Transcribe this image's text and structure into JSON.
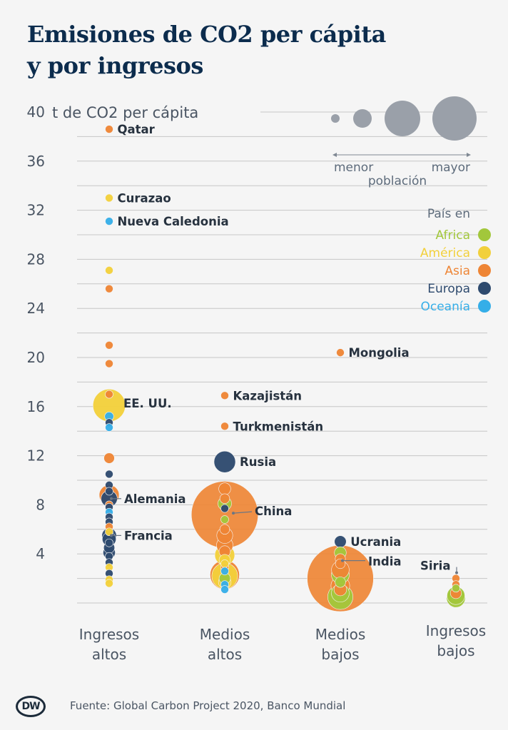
{
  "title": {
    "line1": "Emisiones de CO2 per cápita",
    "line2": "y por ingresos"
  },
  "source": "Fuente: Global Carbon Project 2020, Banco Mundial",
  "logo": "DW",
  "chart_data": {
    "type": "scatter",
    "ylabel": "t de CO2 per cápita",
    "ylim": [
      0,
      40
    ],
    "yticks": [
      4,
      8,
      12,
      16,
      20,
      24,
      28,
      32,
      36,
      40
    ],
    "grid": true,
    "categories": [
      "Ingresos altos",
      "Medios altos",
      "Medios bajos",
      "Ingresos bajos"
    ],
    "category_labels": [
      [
        "Ingresos",
        "altos"
      ],
      [
        "Medios",
        "altos"
      ],
      [
        "Medios",
        "bajos"
      ],
      [
        "Ingresos",
        "bajos"
      ]
    ],
    "size_legend": {
      "low": "menor",
      "high": "mayor",
      "label": "población"
    },
    "color_legend_title": "País en",
    "regions": [
      {
        "name": "Africa",
        "color": "#a2c73b"
      },
      {
        "name": "América",
        "color": "#f2d03b"
      },
      {
        "name": "Asia",
        "color": "#ee8535"
      },
      {
        "name": "Europa",
        "color": "#2e4a6e"
      },
      {
        "name": "Oceanía",
        "color": "#35aee8"
      }
    ],
    "points": [
      {
        "cat": 0,
        "y": 38.6,
        "region": "Asia",
        "pop": 3,
        "label": "Qatar"
      },
      {
        "cat": 0,
        "y": 33.0,
        "region": "América",
        "pop": 1,
        "label": "Curazao"
      },
      {
        "cat": 0,
        "y": 31.1,
        "region": "Oceanía",
        "pop": 1,
        "label": "Nueva Caledonia"
      },
      {
        "cat": 0,
        "y": 27.1,
        "region": "América",
        "pop": 1
      },
      {
        "cat": 0,
        "y": 25.6,
        "region": "Asia",
        "pop": 1
      },
      {
        "cat": 0,
        "y": 21.0,
        "region": "Asia",
        "pop": 1
      },
      {
        "cat": 0,
        "y": 19.5,
        "region": "Asia",
        "pop": 2
      },
      {
        "cat": 0,
        "y": 17.0,
        "region": "Asia",
        "pop": 4
      },
      {
        "cat": 0,
        "y": 16.1,
        "region": "América",
        "pop": 330,
        "label": "EE. UU."
      },
      {
        "cat": 0,
        "y": 15.2,
        "region": "Oceanía",
        "pop": 25
      },
      {
        "cat": 0,
        "y": 14.7,
        "region": "Europa",
        "pop": 3
      },
      {
        "cat": 0,
        "y": 14.3,
        "region": "Oceanía",
        "pop": 5
      },
      {
        "cat": 0,
        "y": 11.8,
        "region": "Asia",
        "pop": 35
      },
      {
        "cat": 0,
        "y": 10.5,
        "region": "Europa",
        "pop": 2
      },
      {
        "cat": 0,
        "y": 9.6,
        "region": "Europa",
        "pop": 10
      },
      {
        "cat": 0,
        "y": 9.1,
        "region": "Europa",
        "pop": 5
      },
      {
        "cat": 0,
        "y": 8.8,
        "region": "Asia",
        "pop": 125
      },
      {
        "cat": 0,
        "y": 8.5,
        "region": "Europa",
        "pop": 83,
        "label": "Alemania"
      },
      {
        "cat": 0,
        "y": 8.0,
        "region": "Asia",
        "pop": 10
      },
      {
        "cat": 0,
        "y": 7.8,
        "region": "Europa",
        "pop": 11
      },
      {
        "cat": 0,
        "y": 7.4,
        "region": "Oceanía",
        "pop": 2
      },
      {
        "cat": 0,
        "y": 7.0,
        "region": "Europa",
        "pop": 17
      },
      {
        "cat": 0,
        "y": 6.6,
        "region": "Europa",
        "pop": 10
      },
      {
        "cat": 0,
        "y": 6.2,
        "region": "Asia",
        "pop": 5
      },
      {
        "cat": 0,
        "y": 5.8,
        "region": "América",
        "pop": 18
      },
      {
        "cat": 0,
        "y": 5.5,
        "region": "Europa",
        "pop": 67,
        "label": "Francia"
      },
      {
        "cat": 0,
        "y": 5.2,
        "region": "Europa",
        "pop": 60
      },
      {
        "cat": 0,
        "y": 4.9,
        "region": "Europa",
        "pop": 20
      },
      {
        "cat": 0,
        "y": 4.5,
        "region": "Europa",
        "pop": 38
      },
      {
        "cat": 0,
        "y": 4.1,
        "region": "Europa",
        "pop": 47
      },
      {
        "cat": 0,
        "y": 3.8,
        "region": "Europa",
        "pop": 10
      },
      {
        "cat": 0,
        "y": 3.3,
        "region": "Europa",
        "pop": 2
      },
      {
        "cat": 0,
        "y": 2.9,
        "region": "América",
        "pop": 2
      },
      {
        "cat": 0,
        "y": 2.4,
        "region": "Europa",
        "pop": 1
      },
      {
        "cat": 0,
        "y": 1.9,
        "region": "América",
        "pop": 1
      },
      {
        "cat": 0,
        "y": 1.6,
        "region": "América",
        "pop": 1
      },
      {
        "cat": 1,
        "y": 16.9,
        "region": "Asia",
        "pop": 19,
        "label": "Kazajistán"
      },
      {
        "cat": 1,
        "y": 14.4,
        "region": "Asia",
        "pop": 6,
        "label": "Turkmenistán"
      },
      {
        "cat": 1,
        "y": 11.5,
        "region": "Europa",
        "pop": 145,
        "label": "Rusia"
      },
      {
        "cat": 1,
        "y": 9.3,
        "region": "Asia",
        "pop": 45
      },
      {
        "cat": 1,
        "y": 8.5,
        "region": "Asia",
        "pop": 30
      },
      {
        "cat": 1,
        "y": 8.1,
        "region": "Africa",
        "pop": 58
      },
      {
        "cat": 1,
        "y": 7.7,
        "region": "Europa",
        "pop": 7
      },
      {
        "cat": 1,
        "y": 7.2,
        "region": "Asia",
        "pop": 1400,
        "label": "China"
      },
      {
        "cat": 1,
        "y": 6.8,
        "region": "Africa",
        "pop": 4
      },
      {
        "cat": 1,
        "y": 6.0,
        "region": "Asia",
        "pop": 30
      },
      {
        "cat": 1,
        "y": 5.5,
        "region": "Asia",
        "pop": 80
      },
      {
        "cat": 1,
        "y": 4.7,
        "region": "Asia",
        "pop": 85
      },
      {
        "cat": 1,
        "y": 4.2,
        "region": "Asia",
        "pop": 40
      },
      {
        "cat": 1,
        "y": 3.9,
        "region": "América",
        "pop": 125
      },
      {
        "cat": 1,
        "y": 3.5,
        "region": "América",
        "pop": 40
      },
      {
        "cat": 1,
        "y": 3.2,
        "region": "America",
        "pop": 10
      },
      {
        "cat": 1,
        "y": 2.9,
        "region": "Asia",
        "pop": 20
      },
      {
        "cat": 1,
        "y": 2.6,
        "region": "Oceanía",
        "pop": 1
      },
      {
        "cat": 1,
        "y": 2.3,
        "region": "Asia",
        "pop": 270
      },
      {
        "cat": 1,
        "y": 2.2,
        "region": "América",
        "pop": 210
      },
      {
        "cat": 1,
        "y": 2.0,
        "region": "Africa",
        "pop": 40
      },
      {
        "cat": 1,
        "y": 1.7,
        "region": "América",
        "pop": 50
      },
      {
        "cat": 1,
        "y": 1.5,
        "region": "Oceanía",
        "pop": 2
      },
      {
        "cat": 1,
        "y": 1.1,
        "region": "Oceanía",
        "pop": 1
      },
      {
        "cat": 2,
        "y": 20.4,
        "region": "Asia",
        "pop": 3,
        "label": "Mongolia"
      },
      {
        "cat": 2,
        "y": 5.0,
        "region": "Europa",
        "pop": 44,
        "label": "Ucrania"
      },
      {
        "cat": 2,
        "y": 4.1,
        "region": "Africa",
        "pop": 44
      },
      {
        "cat": 2,
        "y": 3.6,
        "region": "Asia",
        "pop": 33
      },
      {
        "cat": 2,
        "y": 3.2,
        "region": "Asia",
        "pop": 30
      },
      {
        "cat": 2,
        "y": 2.7,
        "region": "Asia",
        "pop": 98
      },
      {
        "cat": 2,
        "y": 2.3,
        "region": "Africa",
        "pop": 100
      },
      {
        "cat": 2,
        "y": 2.0,
        "region": "Asia",
        "pop": 1380,
        "label": "India"
      },
      {
        "cat": 2,
        "y": 1.7,
        "region": "Africa",
        "pop": 35
      },
      {
        "cat": 2,
        "y": 1.4,
        "region": "Asia",
        "pop": 110
      },
      {
        "cat": 2,
        "y": 1.1,
        "region": "Asia",
        "pop": 50
      },
      {
        "cat": 2,
        "y": 0.8,
        "region": "Africa",
        "pop": 100
      },
      {
        "cat": 2,
        "y": 0.5,
        "region": "Africa",
        "pop": 200
      },
      {
        "cat": 3,
        "y": 2.0,
        "region": "Asia",
        "pop": 18,
        "label": "Siria"
      },
      {
        "cat": 3,
        "y": 1.5,
        "region": "Asia",
        "pop": 8
      },
      {
        "cat": 3,
        "y": 1.2,
        "region": "Africa",
        "pop": 15
      },
      {
        "cat": 3,
        "y": 0.8,
        "region": "Asia",
        "pop": 38
      },
      {
        "cat": 3,
        "y": 0.6,
        "region": "Africa",
        "pop": 100
      },
      {
        "cat": 3,
        "y": 0.4,
        "region": "Africa",
        "pop": 110
      }
    ]
  }
}
